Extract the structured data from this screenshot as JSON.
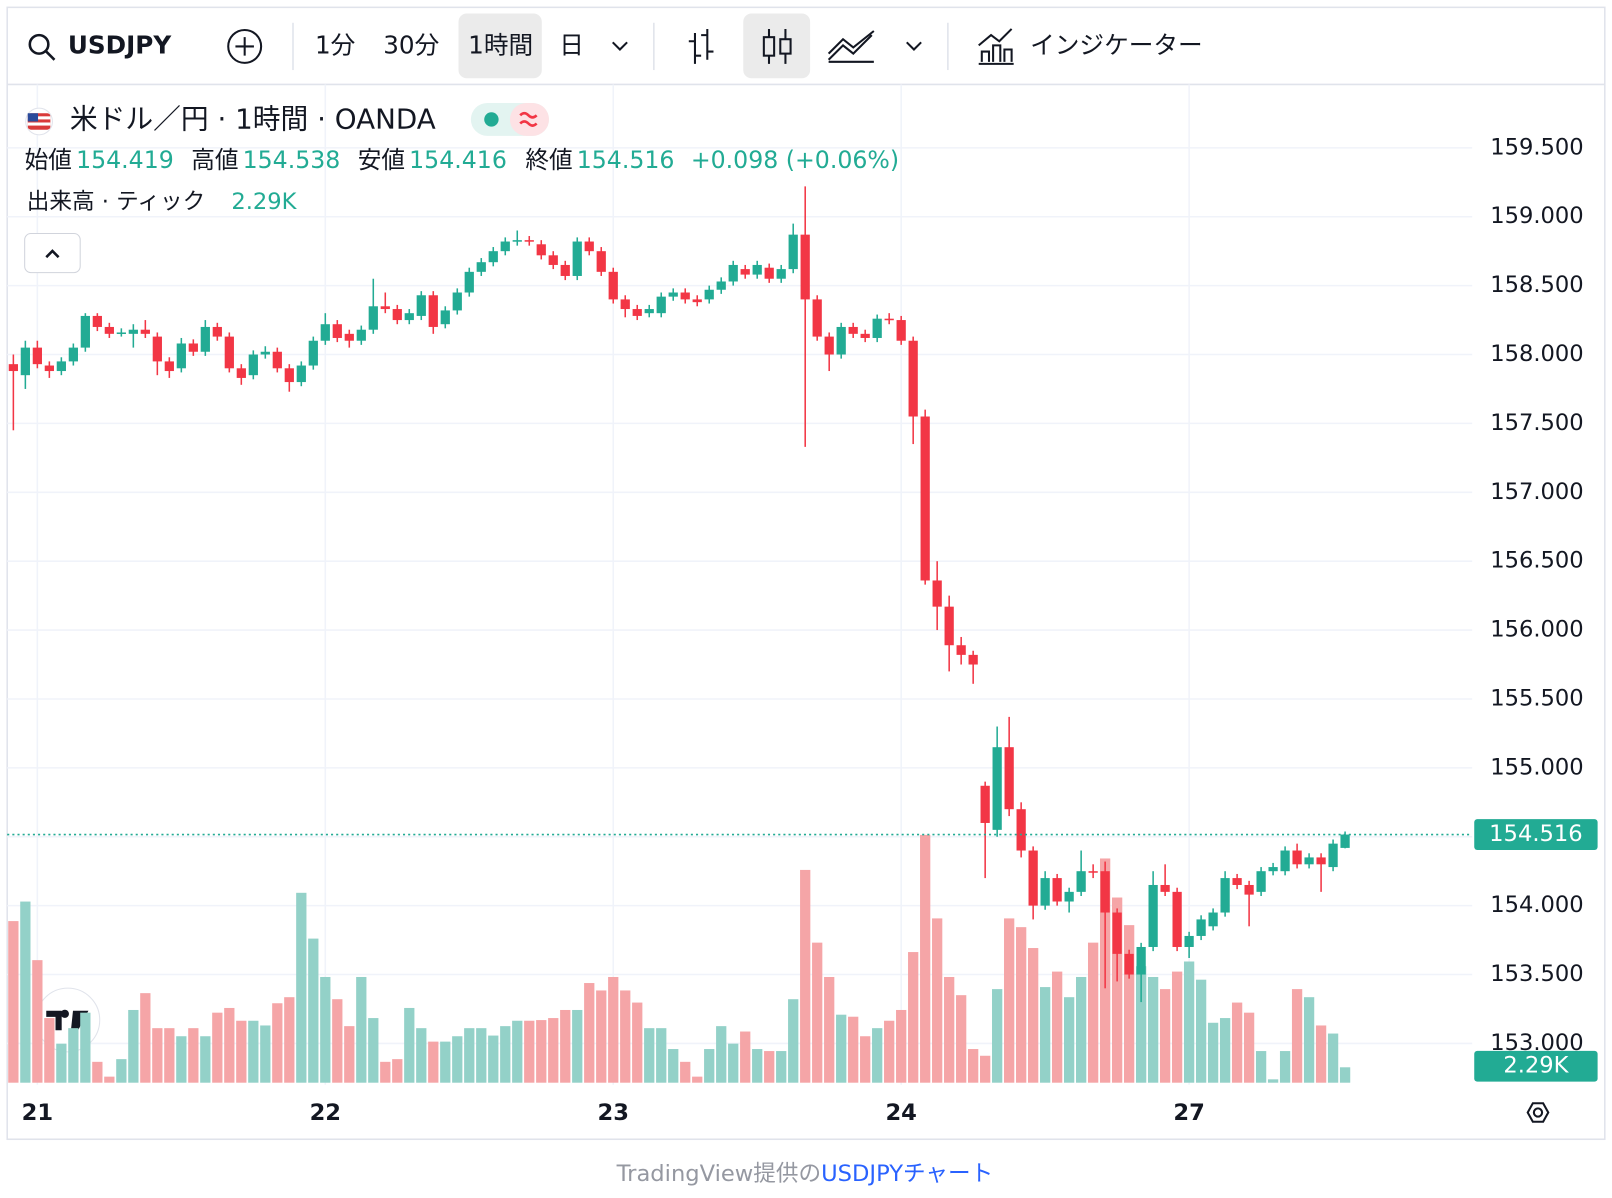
{
  "toolbar": {
    "symbol": "USDJPY",
    "intervals": [
      "1分",
      "30分",
      "1時間",
      "日"
    ],
    "indicators": "インジケーター"
  },
  "chart_data": {
    "type": "candlestick",
    "legend_title": "米ドル／円 · 1時間 · OANDA",
    "ohlc_names": [
      "始値",
      "高値",
      "安値",
      "終値"
    ],
    "change": "+0.098 (+0.06%)",
    "volume_name": "出来高 · ティック",
    "volume_last_label": "2.29K",
    "categories": [
      null,
      null,
      "21",
      null,
      null,
      null,
      null,
      null,
      null,
      null,
      null,
      null,
      null,
      null,
      null,
      null,
      null,
      null,
      null,
      null,
      null,
      null,
      null,
      null,
      null,
      null,
      "22",
      null,
      null,
      null,
      null,
      null,
      null,
      null,
      null,
      null,
      null,
      null,
      null,
      null,
      null,
      null,
      null,
      null,
      null,
      null,
      null,
      null,
      null,
      null,
      "23",
      null,
      null,
      null,
      null,
      null,
      null,
      null,
      null,
      null,
      null,
      null,
      null,
      null,
      null,
      null,
      null,
      null,
      null,
      null,
      null,
      null,
      null,
      null,
      "24",
      null,
      null,
      null,
      null,
      null,
      null,
      null,
      null,
      null,
      null,
      null,
      null,
      null,
      null,
      null,
      null,
      null,
      null,
      null,
      null,
      null,
      null,
      null,
      "27",
      null,
      null,
      null,
      null,
      null,
      null,
      null,
      null,
      null,
      null,
      null,
      null,
      null
    ],
    "open": [
      157.93,
      157.85,
      158.05,
      157.92,
      157.88,
      157.95,
      158.05,
      158.28,
      158.2,
      158.15,
      158.15,
      158.18,
      158.13,
      157.95,
      157.9,
      158.08,
      158.02,
      158.2,
      158.13,
      157.9,
      157.85,
      158.0,
      158.02,
      157.9,
      157.8,
      157.92,
      158.1,
      158.22,
      158.15,
      158.1,
      158.18,
      158.35,
      158.33,
      158.25,
      158.28,
      158.43,
      158.22,
      158.32,
      158.45,
      158.6,
      158.67,
      158.75,
      158.82,
      158.83,
      158.8,
      158.72,
      158.65,
      158.57,
      158.82,
      158.75,
      158.6,
      158.4,
      158.33,
      158.3,
      158.3,
      158.42,
      158.45,
      158.4,
      158.4,
      158.47,
      158.53,
      158.62,
      158.58,
      158.63,
      158.55,
      158.62,
      158.87,
      158.4,
      158.13,
      158.0,
      158.2,
      158.15,
      158.12,
      158.26,
      158.25,
      158.1,
      157.55,
      156.36,
      156.17,
      155.89,
      155.82,
      154.87,
      154.55,
      155.15,
      154.7,
      154.4,
      154.0,
      154.2,
      154.03,
      154.1,
      154.25,
      154.25,
      153.95,
      153.65,
      153.5,
      153.7,
      154.15,
      154.1,
      153.7,
      153.78,
      153.85,
      153.95,
      154.2,
      154.15,
      154.1,
      154.25,
      154.25,
      154.4,
      154.3,
      154.35,
      154.28,
      154.419
    ],
    "high": [
      158.0,
      158.1,
      158.1,
      157.95,
      157.98,
      158.08,
      158.3,
      158.3,
      158.23,
      158.19,
      158.22,
      158.25,
      158.16,
      157.98,
      158.12,
      158.11,
      158.25,
      158.23,
      158.16,
      157.93,
      158.03,
      158.06,
      158.05,
      157.93,
      157.95,
      158.13,
      158.3,
      158.25,
      158.18,
      158.21,
      158.55,
      158.45,
      158.36,
      158.33,
      158.46,
      158.46,
      158.35,
      158.48,
      158.63,
      158.7,
      158.78,
      158.85,
      158.9,
      158.86,
      158.83,
      158.75,
      158.68,
      158.85,
      158.85,
      158.78,
      158.63,
      158.43,
      158.36,
      158.36,
      158.45,
      158.48,
      158.48,
      158.43,
      158.5,
      158.56,
      158.68,
      158.65,
      158.68,
      158.66,
      158.65,
      158.95,
      159.22,
      158.43,
      158.16,
      158.23,
      158.23,
      158.18,
      158.29,
      158.3,
      158.28,
      158.13,
      157.6,
      156.5,
      156.25,
      155.95,
      155.85,
      154.9,
      155.3,
      155.37,
      154.75,
      154.43,
      154.25,
      154.23,
      154.13,
      154.4,
      154.3,
      154.32,
      153.98,
      153.68,
      153.73,
      154.25,
      154.3,
      154.13,
      153.81,
      153.93,
      153.98,
      154.25,
      154.23,
      154.18,
      154.28,
      154.31,
      154.43,
      154.45,
      154.38,
      154.38,
      154.48,
      154.538
    ],
    "low": [
      157.45,
      157.75,
      157.9,
      157.83,
      157.85,
      157.92,
      158.02,
      158.17,
      158.12,
      158.13,
      158.05,
      158.12,
      157.85,
      157.83,
      157.87,
      157.99,
      157.99,
      158.1,
      157.87,
      157.78,
      157.82,
      157.97,
      157.87,
      157.73,
      157.77,
      157.89,
      158.07,
      158.09,
      158.05,
      158.07,
      158.15,
      158.3,
      158.22,
      158.22,
      158.25,
      158.15,
      158.19,
      158.29,
      158.42,
      158.57,
      158.64,
      158.72,
      158.79,
      158.79,
      158.69,
      158.62,
      158.54,
      158.54,
      158.72,
      158.57,
      158.37,
      158.27,
      158.25,
      158.27,
      158.27,
      158.39,
      158.37,
      158.35,
      158.37,
      158.44,
      158.5,
      158.55,
      158.55,
      158.52,
      158.52,
      158.59,
      157.33,
      158.1,
      157.88,
      157.97,
      158.12,
      158.09,
      158.09,
      158.22,
      158.07,
      157.35,
      156.33,
      156.0,
      155.7,
      155.75,
      155.61,
      154.2,
      154.5,
      154.65,
      154.35,
      153.9,
      153.97,
      154.0,
      153.95,
      154.07,
      154.2,
      153.4,
      153.45,
      153.47,
      153.3,
      153.67,
      154.07,
      153.67,
      153.62,
      153.75,
      153.82,
      153.92,
      154.12,
      153.85,
      154.07,
      154.22,
      154.22,
      154.27,
      154.27,
      154.1,
      154.25,
      154.416
    ],
    "close": [
      157.88,
      158.05,
      157.93,
      157.88,
      157.95,
      158.05,
      158.28,
      158.2,
      158.15,
      158.16,
      158.18,
      158.15,
      157.95,
      157.88,
      158.08,
      158.02,
      158.2,
      158.13,
      157.9,
      157.83,
      158.0,
      158.02,
      157.9,
      157.8,
      157.92,
      158.1,
      158.22,
      158.12,
      158.1,
      158.18,
      158.35,
      158.33,
      158.25,
      158.3,
      158.43,
      158.2,
      158.32,
      158.45,
      158.6,
      158.67,
      158.75,
      158.82,
      158.83,
      158.82,
      158.72,
      158.65,
      158.57,
      158.82,
      158.75,
      158.6,
      158.4,
      158.33,
      158.28,
      158.33,
      158.42,
      158.45,
      158.4,
      158.38,
      158.47,
      158.53,
      158.65,
      158.58,
      158.65,
      158.55,
      158.62,
      158.87,
      158.4,
      158.13,
      158.0,
      158.2,
      158.15,
      158.12,
      158.26,
      158.25,
      158.1,
      157.55,
      156.36,
      156.17,
      155.89,
      155.82,
      155.75,
      154.6,
      155.15,
      154.7,
      154.4,
      154.0,
      154.2,
      154.03,
      154.1,
      154.25,
      154.24,
      153.95,
      153.65,
      153.5,
      153.7,
      154.15,
      154.1,
      153.7,
      153.78,
      153.9,
      153.95,
      154.2,
      154.15,
      154.08,
      154.25,
      154.28,
      154.4,
      154.3,
      154.35,
      154.3,
      154.45,
      154.516
    ],
    "volume": [
      24.0,
      26.9,
      18.2,
      9.6,
      5.8,
      8.1,
      10.4,
      3.1,
      0.9,
      3.5,
      10.8,
      13.3,
      8.1,
      8.1,
      6.9,
      8.1,
      6.9,
      10.4,
      11.1,
      9.2,
      9.2,
      8.5,
      11.8,
      12.7,
      28.2,
      21.4,
      15.7,
      12.4,
      8.4,
      15.7,
      9.6,
      3.1,
      3.5,
      11.1,
      8.1,
      6.1,
      6.1,
      6.9,
      8.1,
      8.1,
      7.0,
      8.4,
      9.2,
      9.2,
      9.3,
      9.6,
      10.8,
      10.8,
      14.8,
      13.7,
      15.7,
      13.7,
      11.9,
      8.1,
      8.1,
      5.0,
      3.1,
      0.9,
      5.0,
      8.4,
      5.8,
      7.6,
      5.0,
      4.7,
      4.7,
      12.4,
      31.6,
      20.8,
      15.7,
      10.1,
      9.8,
      6.9,
      8.1,
      9.2,
      10.8,
      19.4,
      36.8,
      24.4,
      15.7,
      13.0,
      5.0,
      4.0,
      13.9,
      24.4,
      23.1,
      20.0,
      14.2,
      16.5,
      12.7,
      15.7,
      20.8,
      33.3,
      27.5,
      23.4,
      17.3,
      15.7,
      13.9,
      16.5,
      18.0,
      15.3,
      8.9,
      9.6,
      11.9,
      10.4,
      4.7,
      0.5,
      4.7,
      13.9,
      12.7,
      8.5,
      7.3,
      2.29
    ],
    "ylim": [
      152.7,
      159.96
    ],
    "yticks": [
      {
        "value": 159.5,
        "label": "159.500"
      },
      {
        "value": 159.0,
        "label": "159.000"
      },
      {
        "value": 158.5,
        "label": "158.500"
      },
      {
        "value": 158.0,
        "label": "158.000"
      },
      {
        "value": 157.5,
        "label": "157.500"
      },
      {
        "value": 157.0,
        "label": "157.000"
      },
      {
        "value": 156.5,
        "label": "156.500"
      },
      {
        "value": 156.0,
        "label": "156.000"
      },
      {
        "value": 155.5,
        "label": "155.500"
      },
      {
        "value": 155.0,
        "label": "155.000"
      },
      {
        "value": 154.5,
        "label": "154.500"
      },
      {
        "value": 154.0,
        "label": "154.000"
      },
      {
        "value": 153.5,
        "label": "153.500"
      },
      {
        "value": 153.0,
        "label": "153.000"
      }
    ],
    "volume_lim": [
      0,
      40
    ],
    "up_color": "#22ab94",
    "down_color": "#f23645",
    "volume_up_color": "#93d1c8",
    "volume_down_color": "#f5a5a7",
    "grid": true
  },
  "footer": {
    "source": "TradingView提供の",
    "link": "USDJPYチャート"
  }
}
